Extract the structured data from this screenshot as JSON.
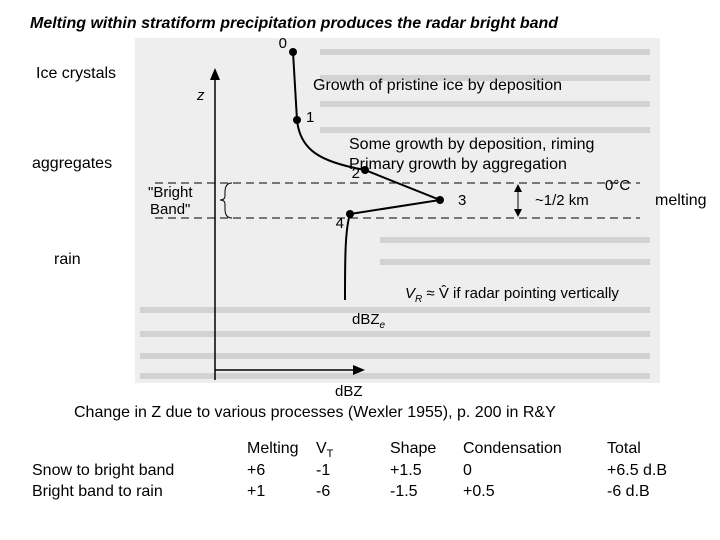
{
  "title": "Melting within stratiform precipitation produces the radar bright band",
  "side_labels": {
    "ice": "Ice crystals",
    "aggregates": "aggregates",
    "rain": "rain",
    "melting": "melting"
  },
  "notes": {
    "deposition": "Growth of pristine ice by deposition",
    "aggregation": [
      "Some growth by deposition, riming",
      "Primary growth by aggregation"
    ]
  },
  "figure": {
    "points": [
      "0",
      "1",
      "2",
      "3",
      "4"
    ],
    "z": "z",
    "bright_band": [
      "\"Bright",
      "Band\""
    ],
    "freezing": "0°C",
    "depth": "~1/2 km",
    "vr": {
      "main": "V",
      "sub": "R",
      "rest": " ≈ V̂  if radar pointing vertically"
    },
    "dbze": {
      "main": "dBZ",
      "sub": "e"
    },
    "dbz": "dBZ"
  },
  "caption": "Change in Z due to various processes (Wexler 1955), p. 200 in R&Y",
  "table": {
    "headers": [
      "Melting",
      {
        "main": "V",
        "sub": "T"
      },
      "Shape",
      "Condensation",
      "Total"
    ],
    "rows": [
      [
        "Snow to bright band",
        "+6",
        "-1",
        "+1.5",
        "0",
        "+6.5 d.B"
      ],
      [
        "Bright band to rain",
        "+1",
        "-6",
        "-1.5",
        "+0.5",
        "-6 d.B"
      ]
    ]
  }
}
